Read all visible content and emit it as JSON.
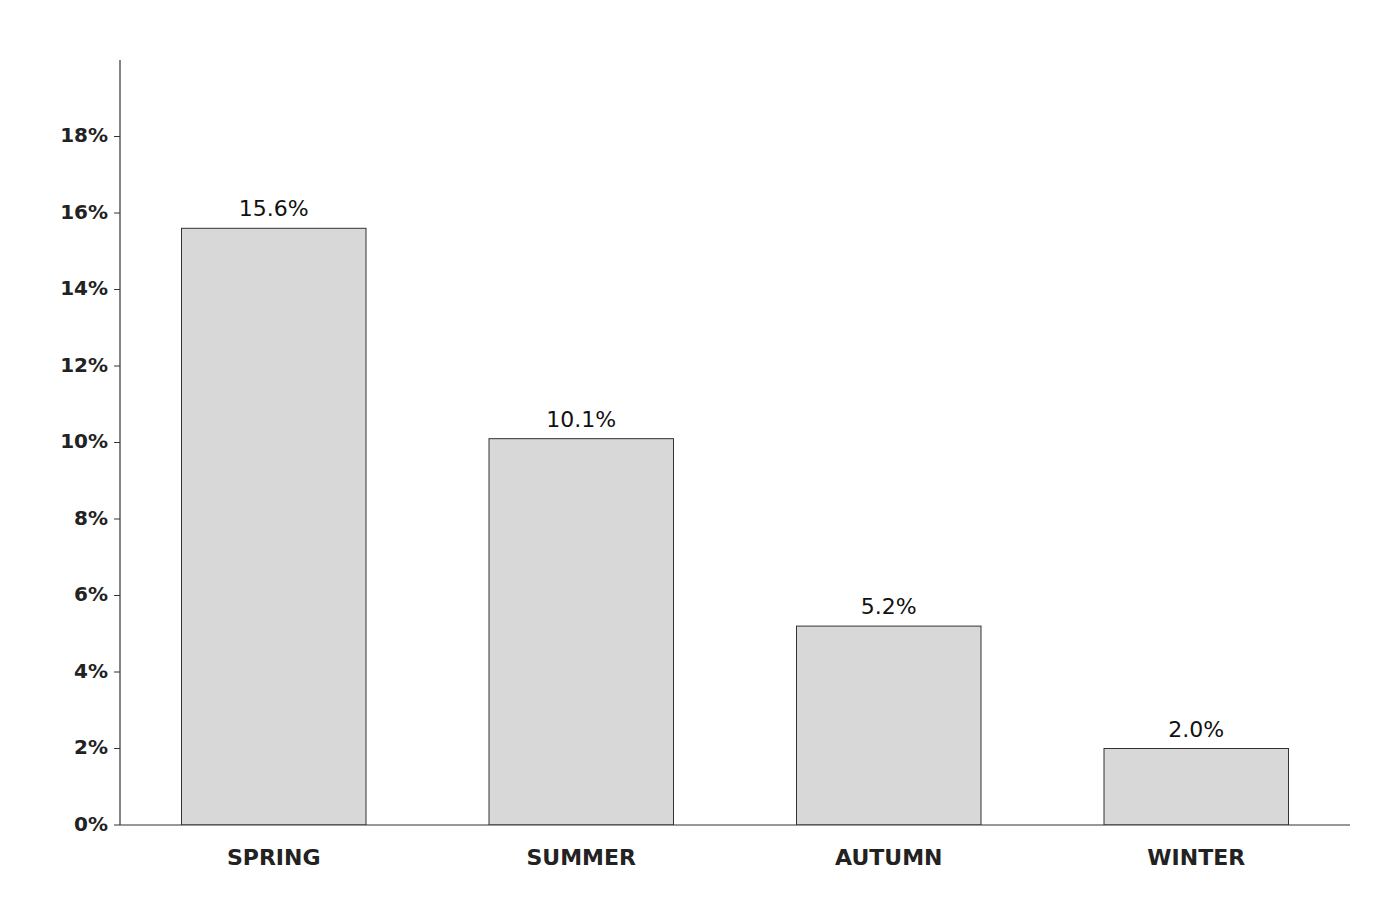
{
  "chart_data": {
    "type": "bar",
    "categories": [
      "SPRING",
      "SUMMER",
      "AUTUMN",
      "WINTER"
    ],
    "values": [
      15.6,
      10.1,
      5.2,
      2.0
    ],
    "value_labels": [
      "15.6%",
      "10.1%",
      "5.2%",
      "2.0%"
    ],
    "data_labels": true,
    "color": "#d8d8d8",
    "ylim": [
      0,
      20
    ],
    "yticks": [
      {
        "value": 0,
        "label": "0%"
      },
      {
        "value": 2,
        "label": "2%"
      },
      {
        "value": 4,
        "label": "4%"
      },
      {
        "value": 6,
        "label": "6%"
      },
      {
        "value": 8,
        "label": "8%"
      },
      {
        "value": 10,
        "label": "10%"
      },
      {
        "value": 12,
        "label": "12%"
      },
      {
        "value": 14,
        "label": "14%"
      },
      {
        "value": 16,
        "label": "16%"
      },
      {
        "value": 18,
        "label": "18%"
      }
    ],
    "grid": false
  }
}
